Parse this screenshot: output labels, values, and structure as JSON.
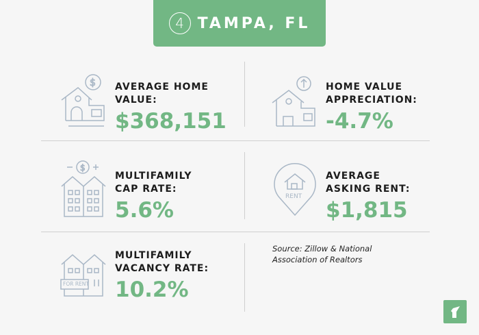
{
  "header": {
    "rank": "4",
    "city": "TAMPA, FL"
  },
  "stats": [
    {
      "label_line1": "AVERAGE HOME",
      "label_line2": "VALUE:",
      "value": "$368,151",
      "icon": "house-dollar-icon"
    },
    {
      "label_line1": "HOME VALUE",
      "label_line2": "APPRECIATION:",
      "value": "-4.7%",
      "icon": "house-arrow-up-icon"
    },
    {
      "label_line1": "MULTIFAMILY",
      "label_line2": "CAP RATE:",
      "value": "5.6%",
      "icon": "multifamily-dollar-icon"
    },
    {
      "label_line1": "AVERAGE",
      "label_line2": "ASKING RENT:",
      "value": "$1,815",
      "icon": "rent-pin-icon"
    },
    {
      "label_line1": "MULTIFAMILY",
      "label_line2": "VACANCY RATE:",
      "value": "10.2%",
      "icon": "for-rent-building-icon"
    }
  ],
  "icon_text": {
    "rent": "RENT",
    "for_rent": "FOR RENT"
  },
  "source": "Source: Zillow & National Association of Realtors",
  "colors": {
    "accent": "#72b784",
    "icon": "#a9b7c6",
    "background": "#f6f6f6"
  }
}
